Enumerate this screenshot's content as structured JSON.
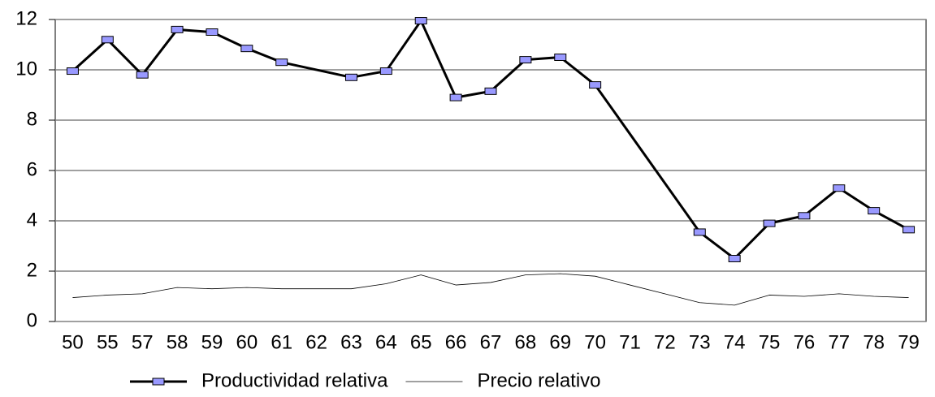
{
  "chart_data": {
    "type": "line",
    "categories": [
      "50",
      "55",
      "57",
      "58",
      "59",
      "60",
      "61",
      "62",
      "63",
      "64",
      "65",
      "66",
      "67",
      "68",
      "69",
      "70",
      "71",
      "72",
      "73",
      "74",
      "75",
      "76",
      "77",
      "78",
      "79"
    ],
    "series": [
      {
        "name": "Productividad relativa",
        "color": "#000000",
        "marker_color": "#9999ff",
        "markers": true,
        "line_width": 3,
        "values": [
          9.95,
          11.2,
          9.8,
          11.6,
          11.5,
          10.85,
          10.3,
          null,
          9.7,
          9.95,
          11.95,
          8.9,
          9.15,
          10.4,
          10.5,
          9.4,
          null,
          null,
          3.55,
          2.5,
          3.9,
          4.2,
          5.3,
          4.4,
          3.65
        ]
      },
      {
        "name": "Precio relativo",
        "color": "#000000",
        "markers": false,
        "line_width": 0.8,
        "values": [
          0.95,
          1.05,
          1.1,
          1.35,
          1.3,
          1.35,
          1.3,
          1.3,
          1.3,
          1.5,
          1.85,
          1.45,
          1.55,
          1.85,
          1.9,
          1.8,
          1.45,
          1.1,
          0.75,
          0.65,
          1.05,
          1.0,
          1.1,
          1.0,
          0.95
        ]
      }
    ],
    "connect_gaps": true,
    "ylim": [
      0,
      12
    ],
    "yticks": [
      0,
      2,
      4,
      6,
      8,
      10,
      12
    ],
    "grid": true,
    "legend": "bottom"
  }
}
